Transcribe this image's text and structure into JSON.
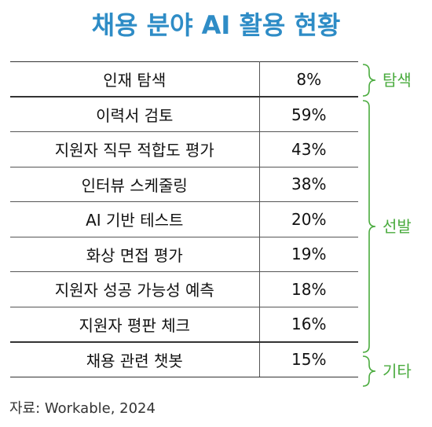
{
  "title": "채용 분야 AI 활용 현황",
  "rows": [
    {
      "item": "인재 탐색",
      "percent": "8%"
    },
    {
      "item": "이력서 검토",
      "percent": "59%"
    },
    {
      "item": "지원자 직무 적합도 평가",
      "percent": "43%"
    },
    {
      "item": "인터뷰 스케줄링",
      "percent": "38%"
    },
    {
      "item": "AI 기반 테스트",
      "percent": "20%"
    },
    {
      "item": "화상 면접 평가",
      "percent": "19%"
    },
    {
      "item": "지원자 성공 가능성 예측",
      "percent": "18%"
    },
    {
      "item": "지원자 평판 체크",
      "percent": "16%"
    },
    {
      "item": "채용 관련 챗봇",
      "percent": "15%"
    }
  ],
  "groups": [
    {
      "label": "탐색"
    },
    {
      "label": "선발"
    },
    {
      "label": "기타"
    }
  ],
  "source": "자료: Workable, 2024",
  "colors": {
    "title": "#2e8cc6",
    "group": "#4aab3e"
  }
}
